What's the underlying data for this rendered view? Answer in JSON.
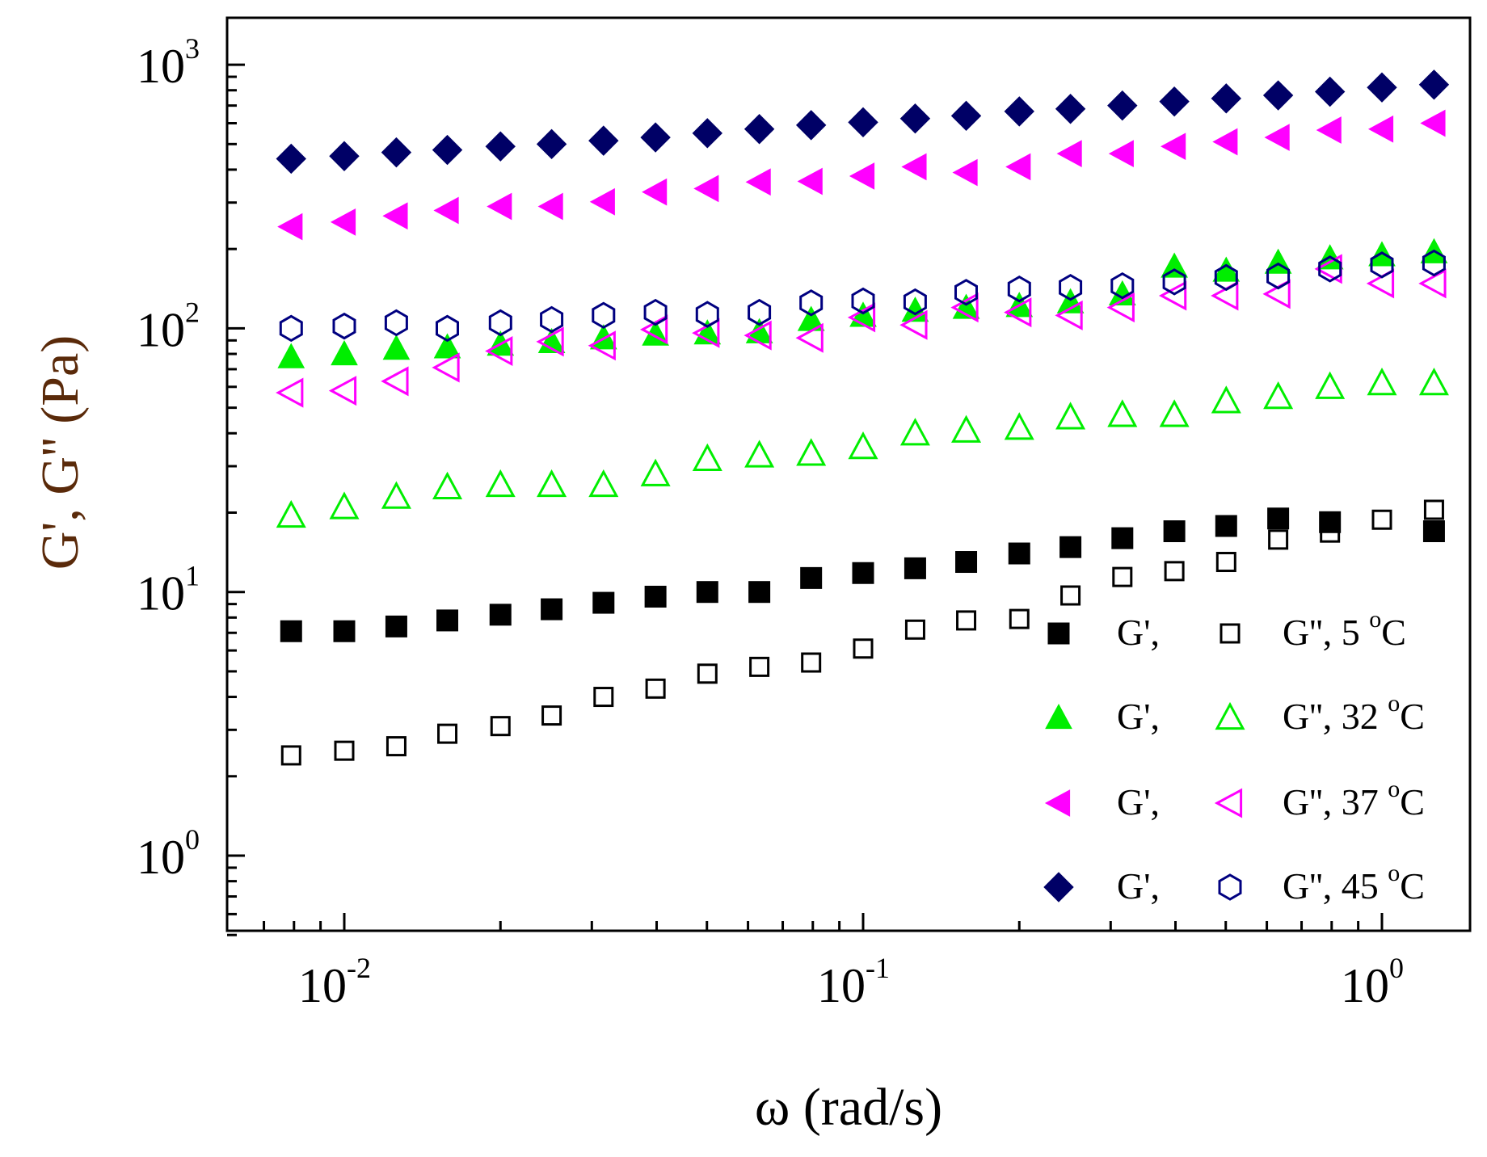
{
  "chart_data": {
    "type": "scatter",
    "title": "",
    "xlabel": "ω (rad/s)",
    "ylabel": "G', G'' (Pa)",
    "xscale": "log",
    "yscale": "log",
    "xlim": [
      0.0066,
      1.4
    ],
    "ylim": [
      0.5,
      1400
    ],
    "grid": false,
    "legend_position": "bottom-right",
    "x_ticks": [
      {
        "value": 0.01,
        "base": "10",
        "exp": "-2"
      },
      {
        "value": 0.1,
        "base": "10",
        "exp": "-1"
      },
      {
        "value": 1,
        "base": "10",
        "exp": "0"
      }
    ],
    "y_ticks": [
      {
        "value": 1,
        "base": "10",
        "exp": "0"
      },
      {
        "value": 10,
        "base": "10",
        "exp": "1"
      },
      {
        "value": 100,
        "base": "10",
        "exp": "2"
      },
      {
        "value": 1000,
        "base": "10",
        "exp": "3"
      }
    ],
    "x": [
      0.0079,
      0.01,
      0.0126,
      0.0158,
      0.02,
      0.0251,
      0.0316,
      0.0398,
      0.0501,
      0.0631,
      0.0794,
      0.1,
      0.126,
      0.158,
      0.2,
      0.251,
      0.316,
      0.398,
      0.501,
      0.631,
      0.794,
      1.0,
      1.26
    ],
    "series": [
      {
        "name": "G', 5 °C",
        "marker": "square",
        "filled": true,
        "color": "#000000",
        "values": [
          7.1,
          7.1,
          7.4,
          7.8,
          8.2,
          8.6,
          9.1,
          9.6,
          10,
          10,
          11.3,
          11.8,
          12.3,
          13,
          14,
          14.8,
          16,
          17,
          17.8,
          19,
          18.4,
          null,
          17
        ]
      },
      {
        "name": "G'', 5 °C",
        "marker": "square",
        "filled": false,
        "color": "#000000",
        "values": [
          2.4,
          2.5,
          2.6,
          2.9,
          3.1,
          3.4,
          4.0,
          4.3,
          4.9,
          5.2,
          5.4,
          6.1,
          7.2,
          7.8,
          7.9,
          9.7,
          11.4,
          12,
          13,
          15.8,
          16.8,
          18.8,
          20.5
        ]
      },
      {
        "name": "G', 32 °C",
        "marker": "triangle-up",
        "filled": true,
        "color": "#00ee00",
        "values": [
          78,
          80,
          84,
          85,
          87,
          89,
          92,
          95,
          96,
          97,
          108,
          112,
          117,
          120,
          122,
          126,
          135,
          172,
          166,
          178,
          185,
          190,
          195
        ]
      },
      {
        "name": "G'', 32 °C",
        "marker": "triangle-up",
        "filled": false,
        "color": "#00ee00",
        "values": [
          19.5,
          21,
          23,
          25,
          25.5,
          25.5,
          25.5,
          28,
          32,
          33,
          33.5,
          35.5,
          40,
          41,
          42,
          46,
          47,
          47,
          53,
          55,
          60,
          62,
          62
        ]
      },
      {
        "name": "G', 37 °C",
        "marker": "triangle-left",
        "filled": true,
        "color": "#ff00ff",
        "values": [
          243,
          253,
          267,
          280,
          290,
          290,
          302,
          329,
          339,
          359,
          361,
          378,
          410,
          390,
          410,
          460,
          460,
          490,
          510,
          530,
          565,
          570,
          600
        ]
      },
      {
        "name": "G'', 37 °C",
        "marker": "triangle-left",
        "filled": false,
        "color": "#ff00ff",
        "values": [
          57,
          58,
          63,
          71,
          82,
          89,
          86,
          99,
          96,
          94,
          92,
          110,
          103,
          120,
          115,
          112,
          120,
          133,
          133,
          135,
          168,
          148,
          148
        ]
      },
      {
        "name": "G', 45 °C",
        "marker": "diamond",
        "filled": true,
        "color": "#000066",
        "values": [
          440,
          450,
          465,
          475,
          490,
          500,
          515,
          530,
          550,
          570,
          590,
          605,
          625,
          640,
          665,
          680,
          700,
          725,
          745,
          765,
          790,
          820,
          840
        ]
      },
      {
        "name": "G'', 45 °C",
        "marker": "hexagon",
        "filled": false,
        "color": "#000080",
        "values": [
          100,
          102,
          105,
          100,
          105,
          108,
          112,
          115,
          113,
          115,
          125,
          127,
          126,
          137,
          141,
          143,
          145,
          150,
          156,
          158,
          168,
          174,
          177
        ]
      }
    ],
    "legend": [
      {
        "gp_label": "G',",
        "gpp_label": "G'', 5",
        "sup": "o",
        "unit": "C",
        "filled_marker": "square",
        "open_marker": "square",
        "color": "#000000",
        "open_color": "#000000"
      },
      {
        "gp_label": "G',",
        "gpp_label": "G'', 32",
        "sup": "o",
        "unit": "C",
        "filled_marker": "triangle-up",
        "open_marker": "triangle-up",
        "color": "#00ee00",
        "open_color": "#00ee00"
      },
      {
        "gp_label": "G',",
        "gpp_label": "G'', 37",
        "sup": "o",
        "unit": "C",
        "filled_marker": "triangle-left",
        "open_marker": "triangle-left",
        "color": "#ff00ff",
        "open_color": "#ff00ff"
      },
      {
        "gp_label": "G',",
        "gpp_label": "G'', 45",
        "sup": "o",
        "unit": "C",
        "filled_marker": "diamond",
        "open_marker": "hexagon",
        "color": "#000066",
        "open_color": "#000080"
      }
    ]
  }
}
